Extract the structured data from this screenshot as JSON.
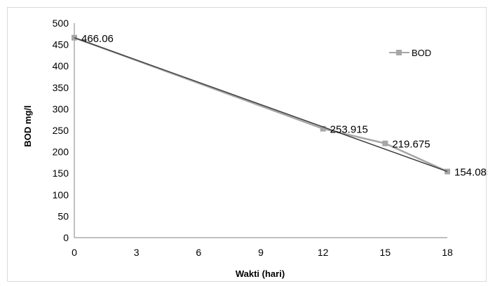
{
  "chart_data": {
    "type": "line",
    "title": "",
    "xlabel": "Wakti (hari)",
    "ylabel": "BOD mg/l",
    "x": [
      0,
      12,
      15,
      18
    ],
    "series": [
      {
        "name": "BOD",
        "values": [
          466.06,
          253.915,
          219.675,
          154.085
        ],
        "data_labels": [
          "466.06",
          "253.915",
          "219.675",
          "154.085"
        ],
        "color": "#a6a6a6",
        "marker": "square"
      }
    ],
    "trendline": {
      "type": "linear",
      "color": "#404040",
      "values": [
        466.06,
        154.085
      ]
    },
    "xlim": [
      0,
      18
    ],
    "ylim": [
      0,
      500
    ],
    "x_ticks": [
      "0",
      "3",
      "6",
      "9",
      "12",
      "15",
      "18"
    ],
    "y_ticks": [
      "0",
      "50",
      "100",
      "150",
      "200",
      "250",
      "300",
      "350",
      "400",
      "450",
      "500"
    ],
    "grid": false,
    "legend": "right"
  }
}
